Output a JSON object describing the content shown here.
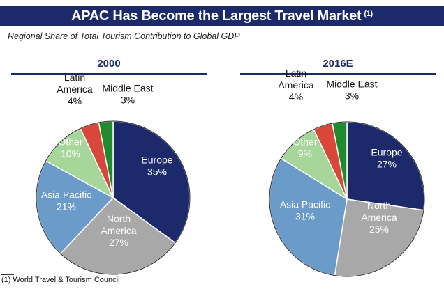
{
  "header": {
    "title": "APAC Has Become the Largest Travel Market",
    "title_note": "(1)",
    "subtitle": "Regional Share of Total Tourism Contribution to Global GDP"
  },
  "footnote": "(1) World Travel & Tourism Council",
  "colors": {
    "Europe": "#1c2a6b",
    "North America": "#a8a8a8",
    "Asia Pacific": "#6a9bc9",
    "Other": "#a6d69a",
    "Latin America": "#d9473a",
    "Middle East": "#1f8a2e",
    "title_bar": "#1c2a6b"
  },
  "chart_data": [
    {
      "type": "pie",
      "title": "2000",
      "labels": [
        "Europe",
        "North America",
        "Asia Pacific",
        "Other",
        "Latin America",
        "Middle East"
      ],
      "label_text": [
        "Europe",
        "North America",
        "Asia Pacific",
        "Other",
        "Latin America",
        "Middle East"
      ],
      "values": [
        35,
        27,
        21,
        10,
        4,
        3
      ]
    },
    {
      "type": "pie",
      "title": "2016E",
      "labels": [
        "Europe",
        "North America",
        "Asia Pacific",
        "Other",
        "Latin America",
        "Middle East"
      ],
      "label_text": [
        "Europe",
        "North America",
        "Asia Pacific",
        "Other",
        "Latin America",
        "Middle East"
      ],
      "values": [
        27,
        25,
        31,
        9,
        4,
        3
      ]
    }
  ]
}
